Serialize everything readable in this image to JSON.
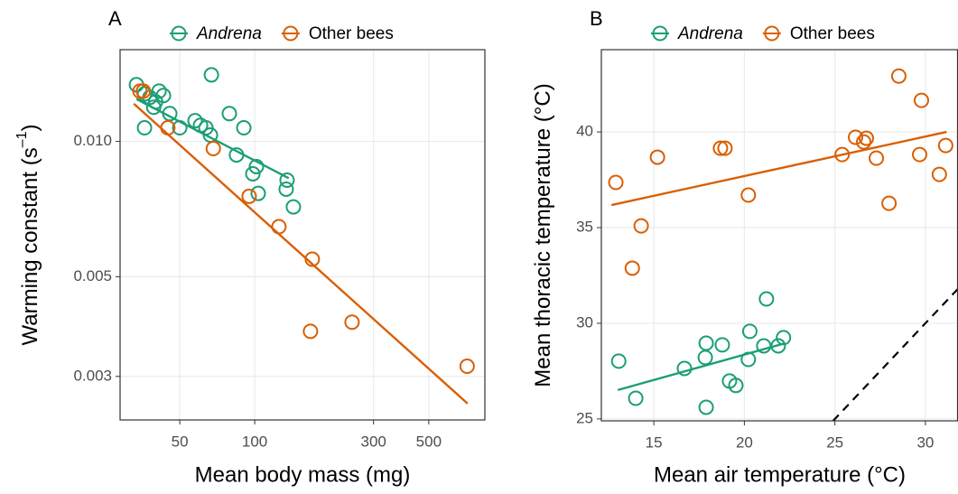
{
  "chart_data": [
    {
      "type": "scatter",
      "title": "A",
      "xlabel": "Mean body mass (mg)",
      "ylabel": {
        "text": "Warming constant  (s",
        "sup": "–1",
        "end": ")"
      },
      "xscale": "log",
      "yscale": "log",
      "grid": true,
      "legend": "top",
      "xlim": [
        28.8,
        840
      ],
      "ylim": [
        0.0024,
        0.016
      ],
      "xticks": [
        50,
        100,
        300,
        500
      ],
      "yticks": [
        0.003,
        0.005,
        {
          "value": 0.01,
          "label": "0.010"
        }
      ],
      "series": [
        {
          "name": "Andrena",
          "name_style": "italic",
          "color": "#1b9e77",
          "x": [
            33.5,
            36.1,
            37.9,
            41.3,
            43.0,
            40.0,
            39.3,
            45.6,
            57.6,
            60.6,
            63.7,
            66.4,
            67.0,
            79.1,
            90.4,
            84.5,
            101.6,
            98.3,
            103.3,
            134.9,
            133.8,
            143.0,
            36.1,
            50.0
          ],
          "y": [
            0.01337,
            0.01276,
            0.01253,
            0.01294,
            0.01265,
            0.01225,
            0.01191,
            0.01153,
            0.01112,
            0.01086,
            0.01072,
            0.01033,
            0.01406,
            0.01153,
            0.01072,
            0.00933,
            0.00879,
            0.00847,
            0.00766,
            0.0082,
            0.00783,
            0.00715,
            0.01072,
            0.01072
          ],
          "fit": {
            "x": [
              33.5,
              137
            ],
            "y": [
              0.01242,
              0.00828
            ]
          }
        },
        {
          "name": "Other bees",
          "color": "#d95f02",
          "x": [
            34.6,
            35.7,
            44.8,
            68.2,
            95.0,
            125.1,
            170.3,
            167.5,
            246,
            713
          ],
          "y": [
            0.01294,
            0.01294,
            0.01072,
            0.00964,
            0.00755,
            0.00646,
            0.00547,
            0.00378,
            0.00396,
            0.00316
          ],
          "fit": {
            "x": [
              32.7,
              716
            ],
            "y": [
              0.01213,
              0.00261
            ]
          }
        }
      ]
    },
    {
      "type": "scatter",
      "title": "B",
      "xlabel": "Mean air temperature (°C)",
      "ylabel": {
        "text": "Mean thoracic temperature (°C)"
      },
      "grid": true,
      "legend": "top",
      "xlim": [
        12.1,
        31.8
      ],
      "ylim": [
        24.9,
        44.3
      ],
      "xticks": [
        15,
        20,
        25,
        30
      ],
      "yticks": [
        25,
        30,
        35,
        40
      ],
      "reference_line": {
        "x": [
          24.9,
          31.8
        ],
        "y": [
          24.9,
          31.8
        ],
        "style": "dashed"
      },
      "series": [
        {
          "name": "Andrena",
          "name_style": "italic",
          "color": "#1b9e77",
          "x": [
            13.06,
            14.0,
            16.69,
            17.89,
            17.84,
            18.78,
            19.18,
            19.53,
            20.22,
            20.3,
            21.07,
            21.22,
            21.87,
            22.16,
            17.89
          ],
          "y": [
            28.02,
            26.08,
            27.64,
            28.96,
            28.21,
            28.87,
            26.98,
            26.75,
            28.11,
            29.58,
            28.82,
            31.27,
            28.82,
            29.25,
            25.61
          ],
          "fit": {
            "x": [
              13.01,
              22.26
            ],
            "y": [
              26.51,
              28.96
            ]
          }
        },
        {
          "name": "Other bees",
          "color": "#d95f02",
          "x": [
            12.9,
            13.81,
            14.3,
            15.2,
            18.68,
            18.93,
            20.22,
            25.4,
            26.14,
            26.59,
            26.74,
            27.29,
            27.99,
            28.53,
            29.68,
            29.78,
            30.77,
            31.12
          ],
          "y": [
            37.36,
            32.88,
            35.09,
            38.68,
            39.15,
            39.15,
            36.7,
            38.82,
            39.72,
            39.48,
            39.67,
            38.63,
            36.27,
            42.92,
            38.82,
            41.65,
            37.78,
            39.29
          ],
          "fit": {
            "x": [
              12.66,
              31.17
            ],
            "y": [
              36.18,
              40.0
            ]
          }
        }
      ]
    }
  ]
}
